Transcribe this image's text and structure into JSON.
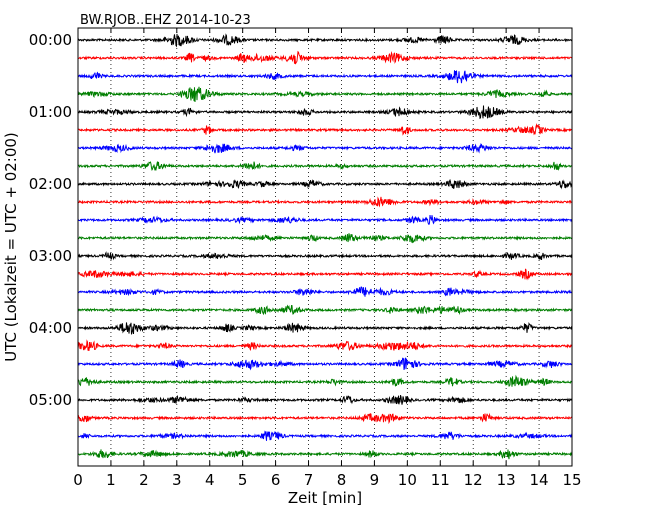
{
  "chart_data": {
    "type": "line",
    "title": "BW.RJOB..EHZ 2014-10-23",
    "xlabel": "Zeit  [min]",
    "ylabel": "UTC (Lokalzeit = UTC + 02:00)",
    "xlim": [
      0,
      15
    ],
    "x_ticks": [
      "0",
      "1",
      "2",
      "3",
      "4",
      "5",
      "6",
      "7",
      "8",
      "9",
      "10",
      "11",
      "12",
      "13",
      "14",
      "15"
    ],
    "y_tick_labels": [
      "00:00",
      "01:00",
      "02:00",
      "03:00",
      "04:00",
      "05:00"
    ],
    "trace_count": 24,
    "trace_interval_minutes": 15,
    "trace_colors": [
      "#000000",
      "#ff0000",
      "#0000ff",
      "#007f00"
    ],
    "grid": "vertical dotted lines at each minute",
    "series_note": "24 stacked 15-minute seismogram traces, 00:00 to 05:45 UTC"
  }
}
